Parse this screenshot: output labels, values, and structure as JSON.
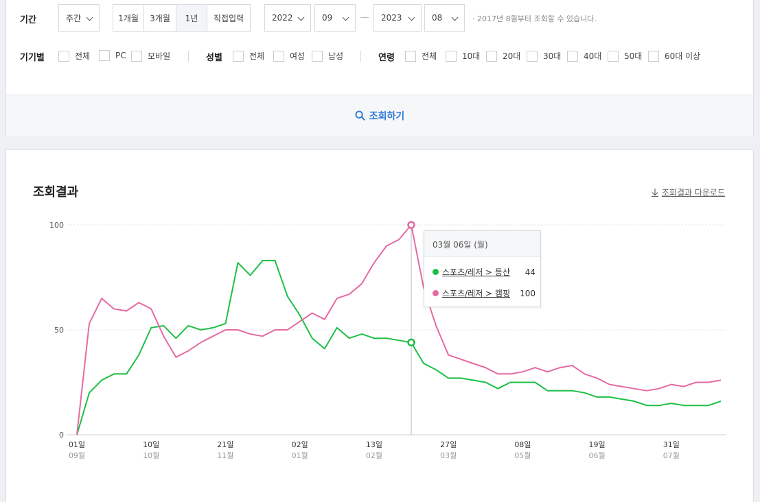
{
  "filter": {
    "period_label": "기간",
    "period_unit": "주간",
    "range_buttons": [
      "1개월",
      "3개월",
      "1년",
      "직접입력"
    ],
    "range_active": 2,
    "start_year": "2022",
    "start_month": "09",
    "end_year": "2023",
    "end_month": "08",
    "note": "· 2017년 8월부터 조회할 수 있습니다.",
    "device_label": "기기별",
    "device_options": [
      "전체",
      "PC",
      "모바일"
    ],
    "gender_label": "성별",
    "gender_options": [
      "전체",
      "여성",
      "남성"
    ],
    "age_label": "연령",
    "age_options": [
      "전체",
      "10대",
      "20대",
      "30대",
      "40대",
      "50대",
      "60대 이상"
    ],
    "search_label": "조회하기"
  },
  "result": {
    "title": "조회결과",
    "download_label": "조회결과 다운로드"
  },
  "tooltip": {
    "date": "03월 06일 (월)",
    "rows": [
      {
        "name": "스포츠/레저 > 등산",
        "value": "44"
      },
      {
        "name": "스포츠/레저 > 캠핑",
        "value": "100"
      }
    ]
  },
  "colors": {
    "hiking": "#1cbf45",
    "camping": "#e46aa3",
    "accent": "#2f7bd9"
  },
  "chart_data": {
    "type": "line",
    "y_ticks": [
      "0",
      "50",
      "100"
    ],
    "ylim": [
      0,
      100
    ],
    "x_tick_labels": [
      {
        "day": "01일",
        "month": "09월",
        "index": 0
      },
      {
        "day": "10일",
        "month": "10월",
        "index": 6
      },
      {
        "day": "21일",
        "month": "11월",
        "index": 12
      },
      {
        "day": "02일",
        "month": "01월",
        "index": 18
      },
      {
        "day": "13일",
        "month": "02월",
        "index": 24
      },
      {
        "day": "27일",
        "month": "03월",
        "index": 30
      },
      {
        "day": "08일",
        "month": "05월",
        "index": 36
      },
      {
        "day": "19일",
        "month": "06월",
        "index": 42
      },
      {
        "day": "31일",
        "month": "07월",
        "index": 48
      }
    ],
    "highlight_index": 27,
    "series": [
      {
        "name": "스포츠/레저 > 등산",
        "color": "#1cbf45",
        "values": [
          0,
          20,
          26,
          29,
          29,
          38,
          51,
          52,
          46,
          52,
          50,
          51,
          53,
          82,
          76,
          83,
          83,
          66,
          57,
          46,
          41,
          51,
          46,
          48,
          46,
          46,
          45,
          44,
          34,
          31,
          27,
          27,
          26,
          25,
          22,
          25,
          25,
          25,
          21,
          21,
          21,
          20,
          18,
          18,
          17,
          16,
          14,
          14,
          15,
          14,
          14,
          14,
          16
        ]
      },
      {
        "name": "스포츠/레저 > 캠핑",
        "color": "#e46aa3",
        "values": [
          0,
          53,
          65,
          60,
          59,
          63,
          60,
          47,
          37,
          40,
          44,
          47,
          50,
          50,
          48,
          47,
          50,
          50,
          54,
          58,
          55,
          65,
          67,
          72,
          82,
          90,
          93,
          100,
          70,
          52,
          38,
          36,
          34,
          32,
          29,
          29,
          30,
          32,
          30,
          32,
          33,
          29,
          27,
          24,
          23,
          22,
          21,
          22,
          24,
          23,
          25,
          25,
          26
        ]
      }
    ]
  }
}
